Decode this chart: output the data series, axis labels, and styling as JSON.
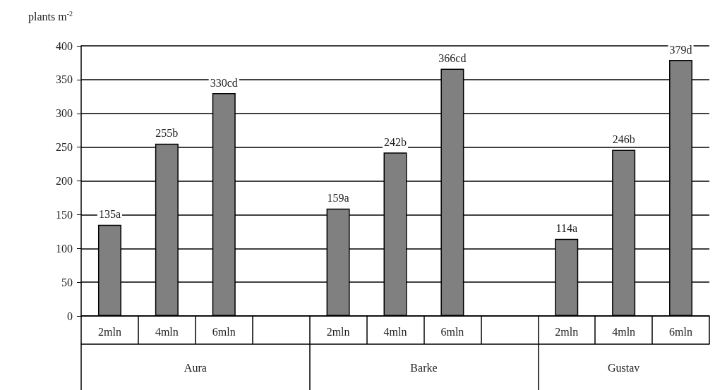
{
  "chart_data": {
    "type": "bar",
    "ylabel": "plants m$^{-2}$",
    "categories": [
      "2mln",
      "4mln",
      "6mln",
      null,
      "2mln",
      "4mln",
      "6mln",
      null,
      "2mln",
      "4mln",
      "6mln"
    ],
    "values": [
      135,
      255,
      330,
      null,
      159,
      242,
      366,
      null,
      114,
      246,
      379
    ],
    "value_labels": [
      "135a",
      "255b",
      "330cd",
      null,
      "159a",
      "242b",
      "366cd",
      null,
      "114a",
      "246b",
      "379d"
    ],
    "color": "#808080",
    "annotations": [
      "Aura",
      "Barke",
      "Gustav"
    ],
    "ylim": [
      0,
      400
    ],
    "yticks": [
      0,
      50,
      100,
      150,
      200,
      250,
      300,
      350,
      400
    ],
    "grid": "y"
  }
}
